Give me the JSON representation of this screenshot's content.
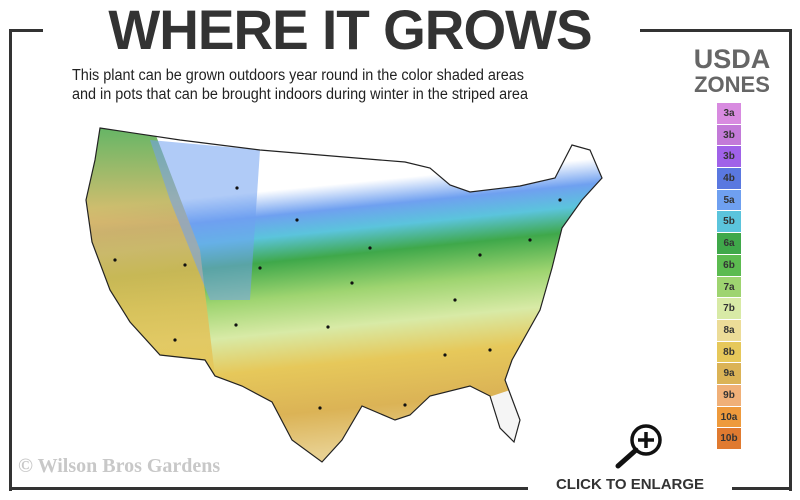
{
  "header": {
    "title": "WHERE IT GROWS",
    "subtitle_line1": "This plant can be grown outdoors year round in the color shaded areas",
    "subtitle_line2": "and in pots that can be brought indoors during winter in the striped area"
  },
  "legend": {
    "title_line1": "USDA",
    "title_line2": "ZONES",
    "zones": [
      {
        "label": "3a",
        "color": "#d88be0"
      },
      {
        "label": "3b",
        "color": "#c37ad8"
      },
      {
        "label": "3b",
        "color": "#a062e8"
      },
      {
        "label": "4b",
        "color": "#5a78e0"
      },
      {
        "label": "5a",
        "color": "#6fa0f0"
      },
      {
        "label": "5b",
        "color": "#5bc4dc"
      },
      {
        "label": "6a",
        "color": "#3fa84a"
      },
      {
        "label": "6b",
        "color": "#5cbb50"
      },
      {
        "label": "7a",
        "color": "#9ed470"
      },
      {
        "label": "7b",
        "color": "#d8eaa6"
      },
      {
        "label": "8a",
        "color": "#ecdc98"
      },
      {
        "label": "8b",
        "color": "#e6c85a"
      },
      {
        "label": "9a",
        "color": "#dbb356"
      },
      {
        "label": "9b",
        "color": "#f0b078"
      },
      {
        "label": "10a",
        "color": "#ee9a3c"
      },
      {
        "label": "10b",
        "color": "#e07a30"
      }
    ]
  },
  "map": {
    "region": "Contiguous United States",
    "icon": "us-zone-map"
  },
  "footer": {
    "copyright": "© Wilson Bros Gardens",
    "enlarge_label": "CLICK TO ENLARGE",
    "enlarge_icon": "magnifier-plus-icon"
  }
}
